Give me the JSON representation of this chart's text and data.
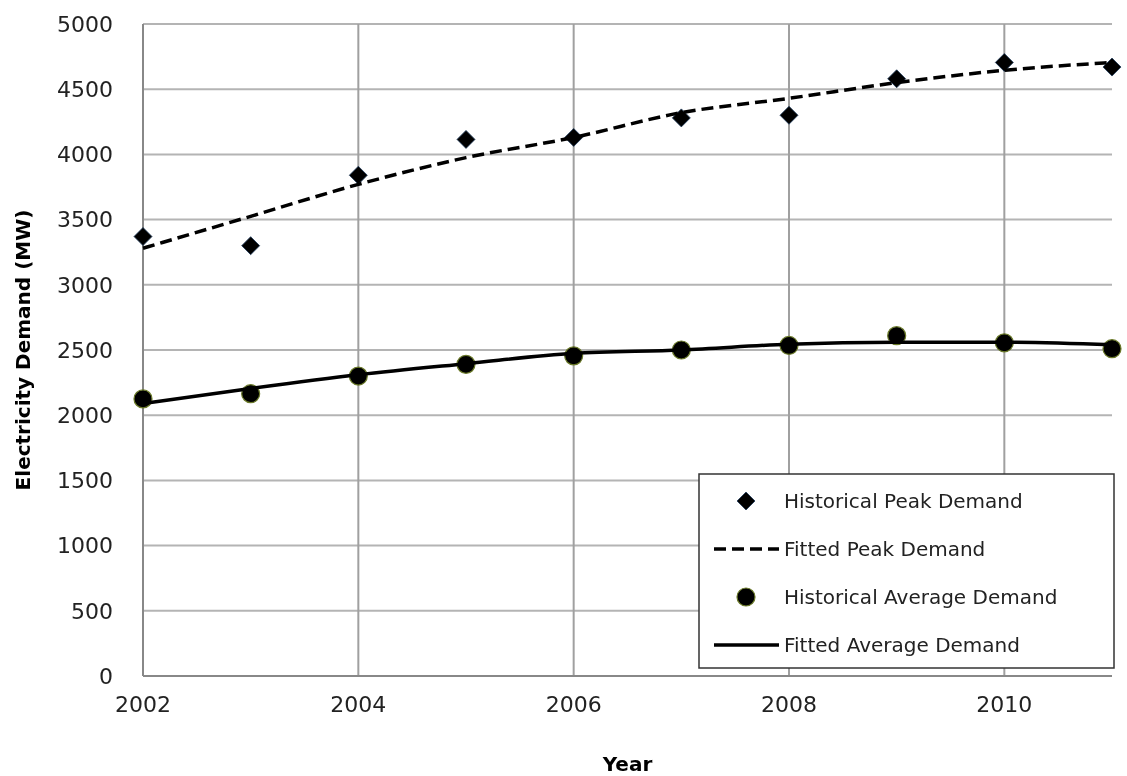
{
  "chart_data": {
    "type": "scatter",
    "xlabel": "Year",
    "ylabel": "Electricity Demand (MW)",
    "x": [
      2002,
      2003,
      2004,
      2005,
      2006,
      2007,
      2008,
      2009,
      2010,
      2011
    ],
    "xlim": [
      2002,
      2011
    ],
    "xticks": [
      2002,
      2004,
      2006,
      2008,
      2010
    ],
    "ylim": [
      0,
      5000
    ],
    "yticks": [
      0,
      500,
      1000,
      1500,
      2000,
      2500,
      3000,
      3500,
      4000,
      4500,
      5000
    ],
    "grid": true,
    "legend": "bottom right",
    "series": [
      {
        "name": "Historical Peak Demand",
        "marker": "diamond",
        "color": "#000000",
        "values": [
          3370,
          3300,
          3840,
          4115,
          4130,
          4280,
          4300,
          4580,
          4705,
          4670
        ]
      },
      {
        "name": "Fitted Peak Demand",
        "type": "line",
        "marker": "none",
        "line_style": "dashed",
        "color": "#000000",
        "values": [
          3280,
          3525,
          3770,
          3975,
          4130,
          4320,
          4430,
          4550,
          4645,
          4705
        ]
      },
      {
        "name": "Historical Average Demand",
        "marker": "circle",
        "color": "#000000",
        "values": [
          2125,
          2165,
          2300,
          2390,
          2455,
          2500,
          2535,
          2610,
          2555,
          2510
        ]
      },
      {
        "name": "Fitted Average Demand",
        "type": "line",
        "marker": "none",
        "line_style": "solid",
        "color": "#000000",
        "values": [
          2090,
          2205,
          2310,
          2395,
          2475,
          2500,
          2545,
          2560,
          2560,
          2540
        ]
      }
    ]
  }
}
